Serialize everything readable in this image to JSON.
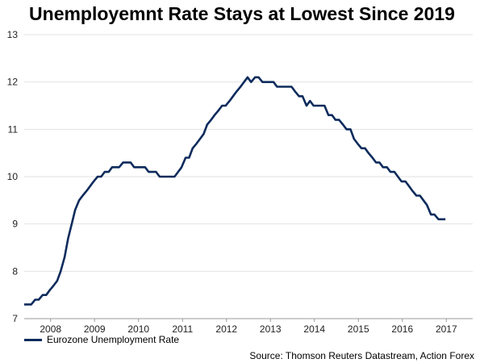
{
  "chart_data": {
    "type": "line",
    "title": "Unemployemnt Rate Stays at Lowest Since 2019",
    "xlabel": "",
    "ylabel": "",
    "xlim": [
      2007.5,
      2017.7
    ],
    "ylim": [
      7,
      13
    ],
    "yticks": [
      7,
      8,
      9,
      10,
      11,
      12,
      13
    ],
    "xticks": [
      {
        "label": "2008",
        "value": 2008.1
      },
      {
        "label": "2009",
        "value": 2009.1
      },
      {
        "label": "2010",
        "value": 2010.1
      },
      {
        "label": "2011",
        "value": 2011.1
      },
      {
        "label": "2012",
        "value": 2012.1
      },
      {
        "label": "2013",
        "value": 2013.1
      },
      {
        "label": "2014",
        "value": 2014.1
      },
      {
        "label": "2015",
        "value": 2015.1
      },
      {
        "label": "2016",
        "value": 2016.1
      },
      {
        "label": "2017",
        "value": 2017.1
      }
    ],
    "grid": "horizontal",
    "legend_position": "bottom-left",
    "series": [
      {
        "name": "Eurozone Unemployment Rate",
        "color": "#0d2b5c",
        "points": [
          [
            2007.5,
            7.3
          ],
          [
            2007.66,
            7.3
          ],
          [
            2007.75,
            7.4
          ],
          [
            2007.83,
            7.4
          ],
          [
            2007.92,
            7.5
          ],
          [
            2008.0,
            7.5
          ],
          [
            2008.08,
            7.6
          ],
          [
            2008.17,
            7.7
          ],
          [
            2008.25,
            7.8
          ],
          [
            2008.33,
            8.0
          ],
          [
            2008.42,
            8.3
          ],
          [
            2008.5,
            8.7
          ],
          [
            2008.58,
            9.0
          ],
          [
            2008.66,
            9.3
          ],
          [
            2008.75,
            9.5
          ],
          [
            2008.83,
            9.6
          ],
          [
            2008.92,
            9.7
          ],
          [
            2009.0,
            9.8
          ],
          [
            2009.08,
            9.9
          ],
          [
            2009.17,
            10.0
          ],
          [
            2009.25,
            10.0
          ],
          [
            2009.33,
            10.1
          ],
          [
            2009.42,
            10.1
          ],
          [
            2009.5,
            10.2
          ],
          [
            2009.58,
            10.2
          ],
          [
            2009.66,
            10.2
          ],
          [
            2009.75,
            10.3
          ],
          [
            2009.83,
            10.3
          ],
          [
            2009.92,
            10.3
          ],
          [
            2010.0,
            10.2
          ],
          [
            2010.08,
            10.2
          ],
          [
            2010.17,
            10.2
          ],
          [
            2010.25,
            10.2
          ],
          [
            2010.33,
            10.1
          ],
          [
            2010.42,
            10.1
          ],
          [
            2010.5,
            10.1
          ],
          [
            2010.58,
            10.0
          ],
          [
            2010.66,
            10.0
          ],
          [
            2010.75,
            10.0
          ],
          [
            2010.83,
            10.0
          ],
          [
            2010.92,
            10.0
          ],
          [
            2011.0,
            10.1
          ],
          [
            2011.08,
            10.2
          ],
          [
            2011.17,
            10.4
          ],
          [
            2011.25,
            10.4
          ],
          [
            2011.33,
            10.6
          ],
          [
            2011.42,
            10.7
          ],
          [
            2011.5,
            10.8
          ],
          [
            2011.58,
            10.9
          ],
          [
            2011.66,
            11.1
          ],
          [
            2011.75,
            11.2
          ],
          [
            2011.83,
            11.3
          ],
          [
            2011.92,
            11.4
          ],
          [
            2012.0,
            11.5
          ],
          [
            2012.08,
            11.5
          ],
          [
            2012.17,
            11.6
          ],
          [
            2012.25,
            11.7
          ],
          [
            2012.33,
            11.8
          ],
          [
            2012.42,
            11.9
          ],
          [
            2012.5,
            12.0
          ],
          [
            2012.58,
            12.1
          ],
          [
            2012.66,
            12.0
          ],
          [
            2012.75,
            12.1
          ],
          [
            2012.83,
            12.1
          ],
          [
            2012.92,
            12.0
          ],
          [
            2013.0,
            12.0
          ],
          [
            2013.08,
            12.0
          ],
          [
            2013.17,
            12.0
          ],
          [
            2013.25,
            11.9
          ],
          [
            2013.33,
            11.9
          ],
          [
            2013.42,
            11.9
          ],
          [
            2013.5,
            11.9
          ],
          [
            2013.58,
            11.9
          ],
          [
            2013.66,
            11.8
          ],
          [
            2013.75,
            11.7
          ],
          [
            2013.83,
            11.7
          ],
          [
            2013.92,
            11.5
          ],
          [
            2014.0,
            11.6
          ],
          [
            2014.08,
            11.5
          ],
          [
            2014.17,
            11.5
          ],
          [
            2014.25,
            11.5
          ],
          [
            2014.33,
            11.5
          ],
          [
            2014.42,
            11.3
          ],
          [
            2014.5,
            11.3
          ],
          [
            2014.58,
            11.2
          ],
          [
            2014.66,
            11.2
          ],
          [
            2014.75,
            11.1
          ],
          [
            2014.83,
            11.0
          ],
          [
            2014.92,
            11.0
          ],
          [
            2015.0,
            10.8
          ],
          [
            2015.08,
            10.7
          ],
          [
            2015.17,
            10.6
          ],
          [
            2015.25,
            10.6
          ],
          [
            2015.33,
            10.5
          ],
          [
            2015.42,
            10.4
          ],
          [
            2015.5,
            10.3
          ],
          [
            2015.58,
            10.3
          ],
          [
            2015.66,
            10.2
          ],
          [
            2015.75,
            10.2
          ],
          [
            2015.83,
            10.1
          ],
          [
            2015.92,
            10.1
          ],
          [
            2016.0,
            10.0
          ],
          [
            2016.08,
            9.9
          ],
          [
            2016.17,
            9.9
          ],
          [
            2016.25,
            9.8
          ],
          [
            2016.33,
            9.7
          ],
          [
            2016.42,
            9.6
          ],
          [
            2016.5,
            9.6
          ],
          [
            2016.58,
            9.5
          ],
          [
            2016.66,
            9.4
          ],
          [
            2016.75,
            9.2
          ],
          [
            2016.83,
            9.2
          ],
          [
            2016.92,
            9.1
          ],
          [
            2017.0,
            9.1
          ],
          [
            2017.08,
            9.1
          ]
        ]
      }
    ]
  },
  "footer": {
    "source": "Source: Thomson Reuters Datastream, Action Forex"
  }
}
